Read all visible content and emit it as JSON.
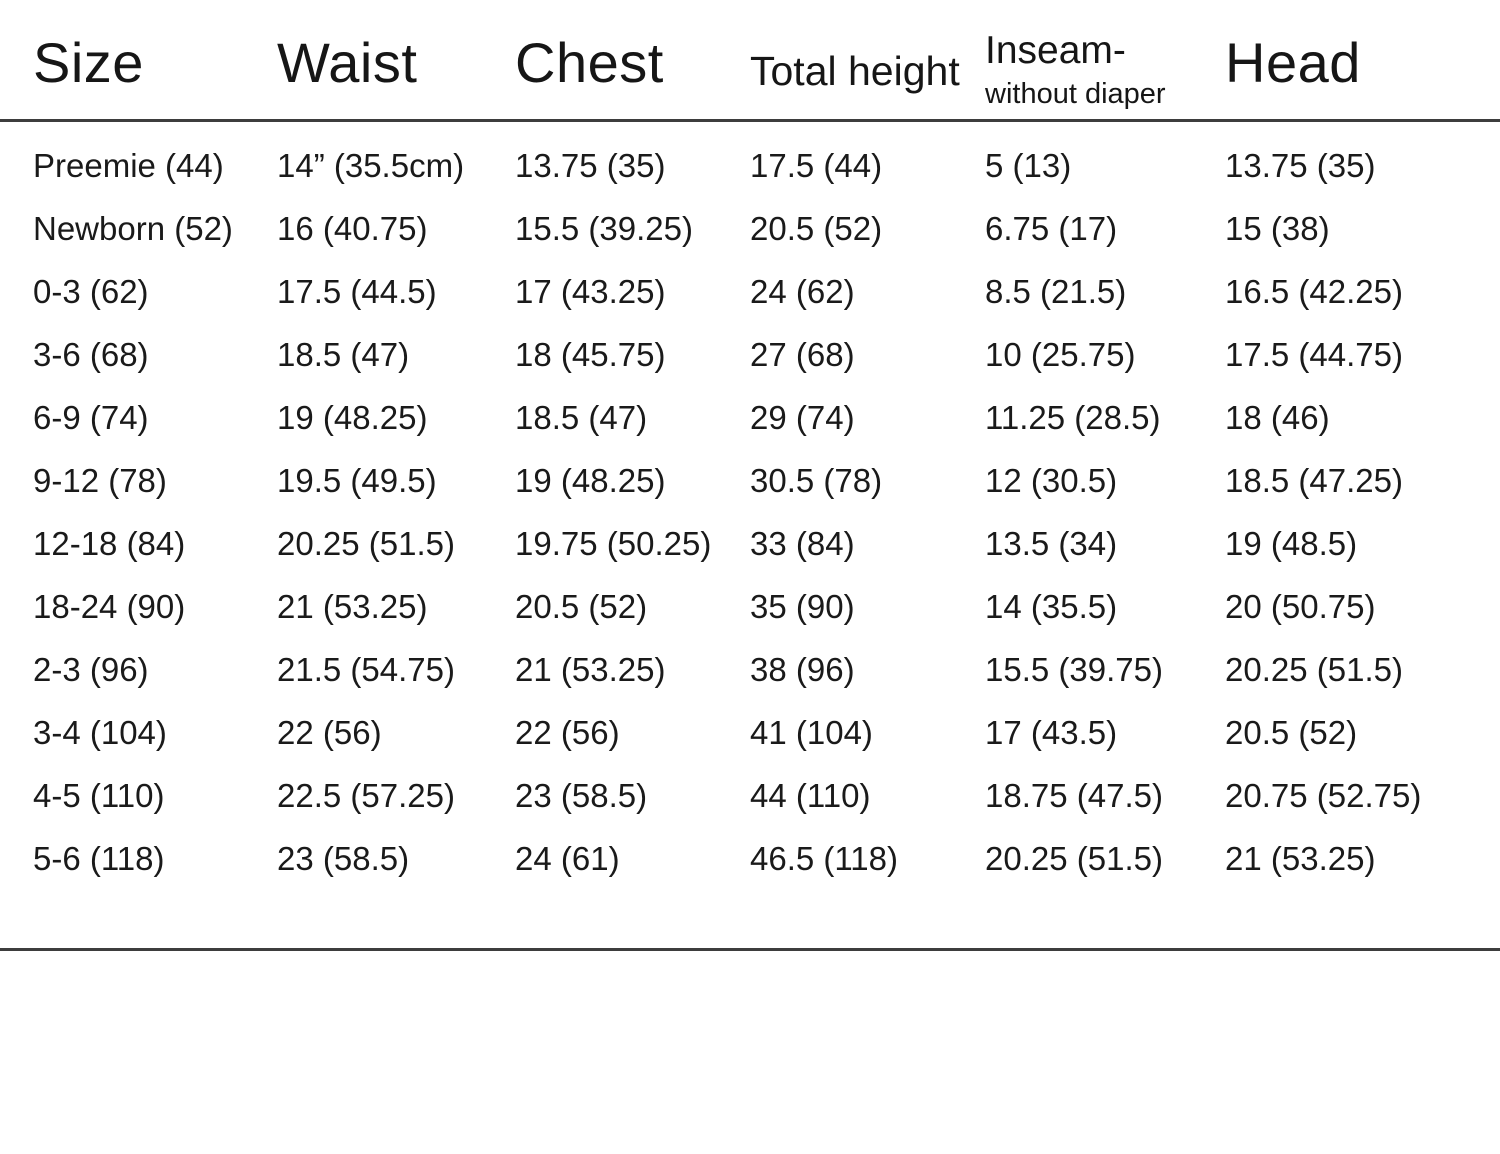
{
  "table": {
    "columns": [
      {
        "label": "Size"
      },
      {
        "label": "Waist"
      },
      {
        "label": "Chest"
      },
      {
        "label": "Total height"
      },
      {
        "label": "Inseam-",
        "sublabel": "without diaper"
      },
      {
        "label": "Head"
      }
    ],
    "rows": [
      [
        "Preemie (44)",
        "14” (35.5cm)",
        "13.75 (35)",
        "17.5 (44)",
        "5 (13)",
        "13.75 (35)"
      ],
      [
        "Newborn (52)",
        "16 (40.75)",
        "15.5 (39.25)",
        "20.5 (52)",
        "6.75 (17)",
        "15 (38)"
      ],
      [
        "0-3 (62)",
        "17.5 (44.5)",
        "17 (43.25)",
        "24 (62)",
        "8.5 (21.5)",
        "16.5 (42.25)"
      ],
      [
        "3-6 (68)",
        "18.5 (47)",
        "18 (45.75)",
        "27 (68)",
        "10 (25.75)",
        "17.5 (44.75)"
      ],
      [
        "6-9 (74)",
        "19 (48.25)",
        "18.5 (47)",
        "29 (74)",
        "11.25 (28.5)",
        "18 (46)"
      ],
      [
        "9-12 (78)",
        "19.5 (49.5)",
        "19 (48.25)",
        "30.5 (78)",
        "12 (30.5)",
        "18.5 (47.25)"
      ],
      [
        "12-18 (84)",
        "20.25 (51.5)",
        "19.75 (50.25)",
        "33 (84)",
        "13.5 (34)",
        "19 (48.5)"
      ],
      [
        "18-24 (90)",
        "21 (53.25)",
        "20.5 (52)",
        "35 (90)",
        "14 (35.5)",
        "20 (50.75)"
      ],
      [
        "2-3 (96)",
        "21.5 (54.75)",
        "21 (53.25)",
        "38 (96)",
        "15.5 (39.75)",
        "20.25 (51.5)"
      ],
      [
        "3-4 (104)",
        "22 (56)",
        "22 (56)",
        "41 (104)",
        "17 (43.5)",
        "20.5 (52)"
      ],
      [
        "4-5 (110)",
        "22.5 (57.25)",
        "23 (58.5)",
        "44 (110)",
        "18.75 (47.5)",
        "20.75 (52.75)"
      ],
      [
        "5-6 (118)",
        "23 (58.5)",
        "24 (61)",
        "46.5 (118)",
        "20.25 (51.5)",
        "21 (53.25)"
      ]
    ]
  },
  "colors": {
    "text": "#1a1a1a",
    "rule": "#3d3d3d",
    "background": "#ffffff"
  }
}
